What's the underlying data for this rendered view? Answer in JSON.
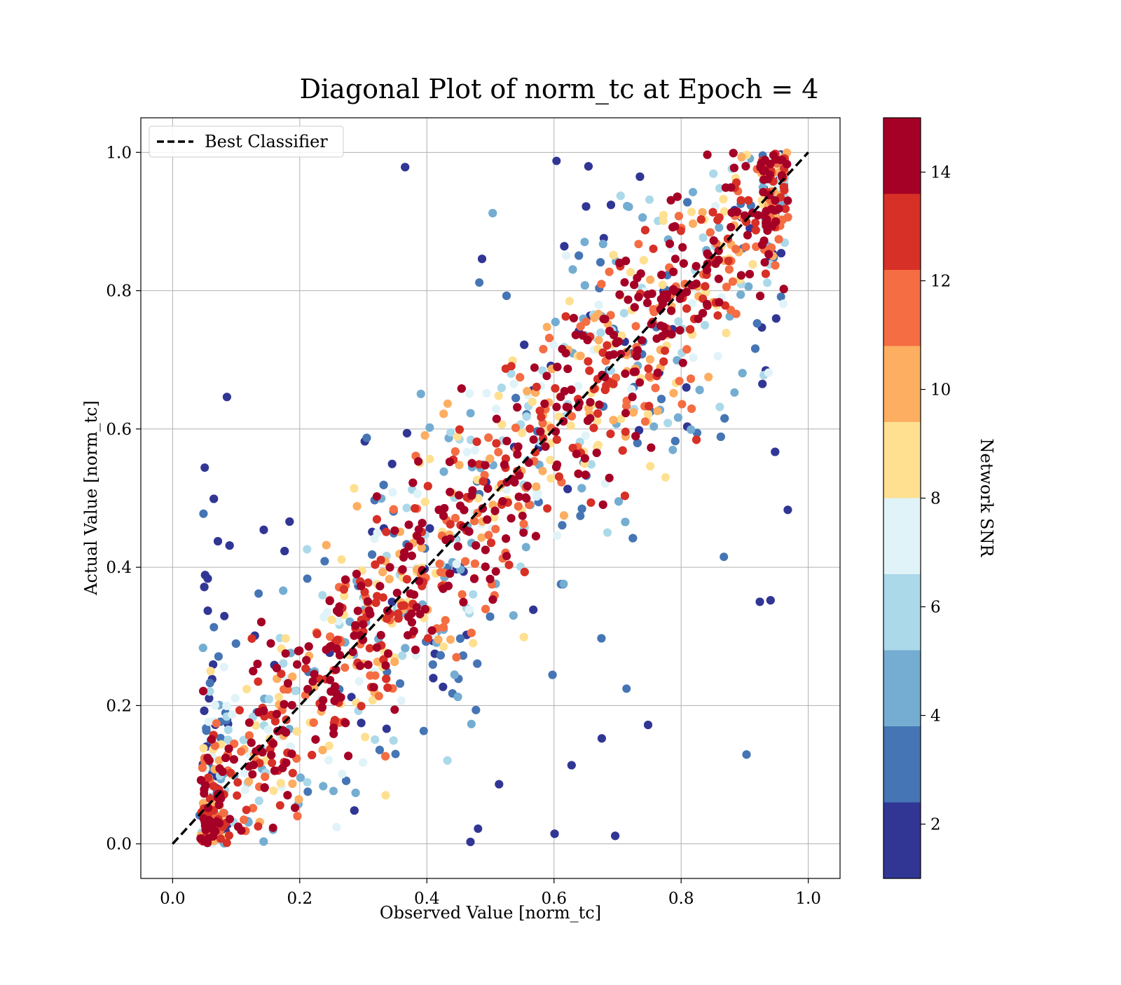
{
  "chart_data": {
    "type": "scatter",
    "title": "Diagonal Plot of norm_tc at Epoch = 4",
    "xlabel": "Observed Value [norm_tc]",
    "ylabel": "Actual Value [norm_tc]",
    "xlim": [
      -0.05,
      1.05
    ],
    "ylim": [
      -0.05,
      1.05
    ],
    "x_ticks": [
      "0.0",
      "0.2",
      "0.4",
      "0.6",
      "0.8",
      "1.0"
    ],
    "y_ticks": [
      "0.0",
      "0.2",
      "0.4",
      "0.6",
      "0.8",
      "1.0"
    ],
    "grid": true,
    "legend": {
      "placement": "top-left",
      "entries": [
        {
          "label": "Best Classifier",
          "style": "dashed",
          "color": "#000000"
        }
      ]
    },
    "reference_line": {
      "name": "Best Classifier",
      "x": [
        0.0,
        1.0
      ],
      "y": [
        0.0,
        1.0
      ]
    },
    "colorbar": {
      "label": "Network SNR",
      "range": [
        1,
        15
      ],
      "ticks": [
        "2",
        "4",
        "6",
        "8",
        "10",
        "12",
        "14"
      ],
      "tick_values": [
        2,
        4,
        6,
        8,
        10,
        12,
        14
      ],
      "levels": [
        {
          "from": 1,
          "to": 2.4,
          "color": "#313695"
        },
        {
          "from": 2.4,
          "to": 3.8,
          "color": "#4575b4"
        },
        {
          "from": 3.8,
          "to": 5.2,
          "color": "#74add1"
        },
        {
          "from": 5.2,
          "to": 6.6,
          "color": "#abd9e9"
        },
        {
          "from": 6.6,
          "to": 8.0,
          "color": "#e0f3f8"
        },
        {
          "from": 8.0,
          "to": 9.4,
          "color": "#fee090"
        },
        {
          "from": 9.4,
          "to": 10.8,
          "color": "#fdae61"
        },
        {
          "from": 10.8,
          "to": 12.2,
          "color": "#f46d43"
        },
        {
          "from": 12.2,
          "to": 13.6,
          "color": "#d73027"
        },
        {
          "from": 13.6,
          "to": 15,
          "color": "#a50026"
        }
      ]
    },
    "scatter_extent": {
      "x_range": [
        0.04,
        0.97
      ],
      "y_range": [
        0.0,
        1.0
      ],
      "high_snr_band_halfwidth": 0.12,
      "spread_max": 0.48
    }
  }
}
